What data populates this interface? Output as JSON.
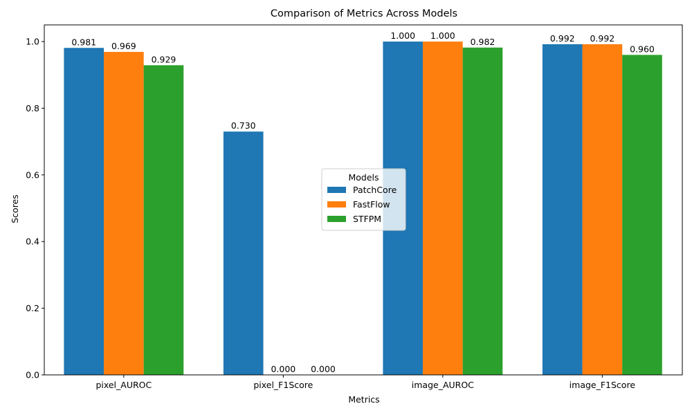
{
  "chart_data": {
    "type": "bar",
    "title": "Comparison of Metrics Across Models",
    "xlabel": "Metrics",
    "ylabel": "Scores",
    "categories": [
      "pixel_AUROC",
      "pixel_F1Score",
      "image_AUROC",
      "image_F1Score"
    ],
    "series": [
      {
        "name": "PatchCore",
        "color": "#1f77b4",
        "values": [
          0.981,
          0.73,
          1.0,
          0.992
        ],
        "labels": [
          "0.981",
          "0.730",
          "1.000",
          "0.992"
        ]
      },
      {
        "name": "FastFlow",
        "color": "#ff7f0e",
        "values": [
          0.969,
          0.0,
          1.0,
          0.992
        ],
        "labels": [
          "0.969",
          "0.000",
          "1.000",
          "0.992"
        ]
      },
      {
        "name": "STFPM",
        "color": "#2ca02c",
        "values": [
          0.929,
          0.0,
          0.982,
          0.96
        ],
        "labels": [
          "0.929",
          "0.000",
          "0.982",
          "0.960"
        ]
      }
    ],
    "ylim": [
      0,
      1.05
    ],
    "yticks": [
      0.0,
      0.2,
      0.4,
      0.6,
      0.8,
      1.0
    ],
    "ytick_labels": [
      "0.0",
      "0.2",
      "0.4",
      "0.6",
      "0.8",
      "1.0"
    ],
    "grid": false,
    "legend": {
      "title": "Models",
      "placement": "center"
    }
  }
}
